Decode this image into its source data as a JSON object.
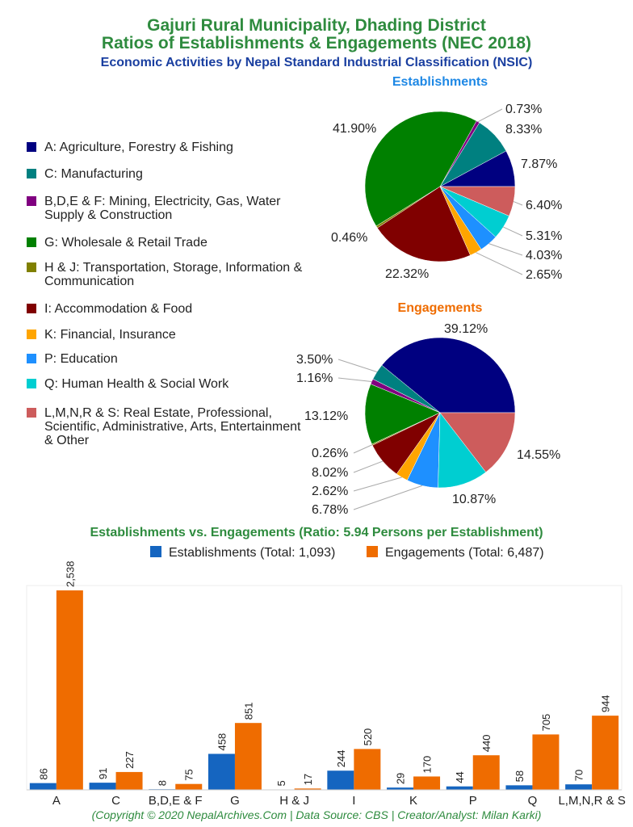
{
  "titles": {
    "line1": "Gajuri Rural Municipality, Dhading District",
    "line2": "Ratios of Establishments & Engagements (NEC 2018)",
    "subtitle": "Economic Activities by Nepal Standard Industrial Classification (NSIC)"
  },
  "legend": [
    {
      "label": "A: Agriculture, Forestry & Fishing",
      "color": "#000080"
    },
    {
      "label": "C: Manufacturing",
      "color": "#008080"
    },
    {
      "label": "B,D,E & F: Mining, Electricity, Gas, Water Supply & Construction",
      "color": "#800080"
    },
    {
      "label": "G: Wholesale & Retail Trade",
      "color": "#008000"
    },
    {
      "label": "H & J: Transportation, Storage, Information & Communication",
      "color": "#808000"
    },
    {
      "label": "I: Accommodation & Food",
      "color": "#800000"
    },
    {
      "label": "K: Financial, Insurance",
      "color": "#FFA500"
    },
    {
      "label": "P: Education",
      "color": "#1E90FF"
    },
    {
      "label": "Q: Human Health & Social Work",
      "color": "#00CED1"
    },
    {
      "label": "L,M,N,R & S: Real Estate, Professional, Scientific, Administrative, Arts, Entertainment & Other",
      "color": "#CD5C5C"
    }
  ],
  "chart_data": [
    {
      "type": "pie",
      "title": "Establishments",
      "title_color": "#1E88E5",
      "start": "east, counterclockwise",
      "labels": [
        "A",
        "C",
        "B,D,E & F",
        "G",
        "H & J",
        "I",
        "K",
        "P",
        "Q",
        "L,M,N,R & S"
      ],
      "values": [
        7.87,
        8.33,
        0.73,
        41.9,
        0.46,
        22.32,
        2.65,
        4.03,
        5.31,
        6.4
      ],
      "data_labels": [
        "7.87%",
        "8.33%",
        "0.73%",
        "41.90%",
        "0.46%",
        "22.32%",
        "2.65%",
        "4.03%",
        "5.31%",
        "6.40%"
      ]
    },
    {
      "type": "pie",
      "title": "Engagements",
      "title_color": "#EF6C00",
      "start": "east, counterclockwise",
      "labels": [
        "A",
        "C",
        "B,D,E & F",
        "G",
        "H & J",
        "I",
        "K",
        "P",
        "Q",
        "L,M,N,R & S"
      ],
      "values": [
        39.12,
        3.5,
        1.16,
        13.12,
        0.26,
        8.02,
        2.62,
        6.78,
        10.87,
        14.55
      ],
      "data_labels": [
        "39.12%",
        "3.50%",
        "1.16%",
        "13.12%",
        "0.26%",
        "8.02%",
        "2.62%",
        "6.78%",
        "10.87%",
        "14.55%"
      ]
    },
    {
      "type": "bar",
      "title": "Establishments vs. Engagements (Ratio: 5.94 Persons per Establishment)",
      "categories": [
        "A",
        "C",
        "B,D,E & F",
        "G",
        "H & J",
        "I",
        "K",
        "P",
        "Q",
        "L,M,N,R & S"
      ],
      "series": [
        {
          "name": "Establishments (Total: 1,093)",
          "color": "#1565C0",
          "values": [
            86,
            91,
            8,
            458,
            5,
            244,
            29,
            44,
            58,
            70
          ],
          "data_labels": [
            "86",
            "91",
            "8",
            "458",
            "5",
            "244",
            "29",
            "44",
            "58",
            "70"
          ]
        },
        {
          "name": "Engagements (Total: 6,487)",
          "color": "#EF6C00",
          "values": [
            2538,
            227,
            75,
            851,
            17,
            520,
            170,
            440,
            705,
            944
          ],
          "data_labels": [
            "2,538",
            "227",
            "75",
            "851",
            "17",
            "520",
            "170",
            "440",
            "705",
            "944"
          ]
        }
      ],
      "ylim": [
        0,
        2600
      ],
      "legend": "top"
    }
  ],
  "footer": "(Copyright © 2020 NepalArchives.Com | Data Source: CBS | Creator/Analyst: Milan Karki)"
}
